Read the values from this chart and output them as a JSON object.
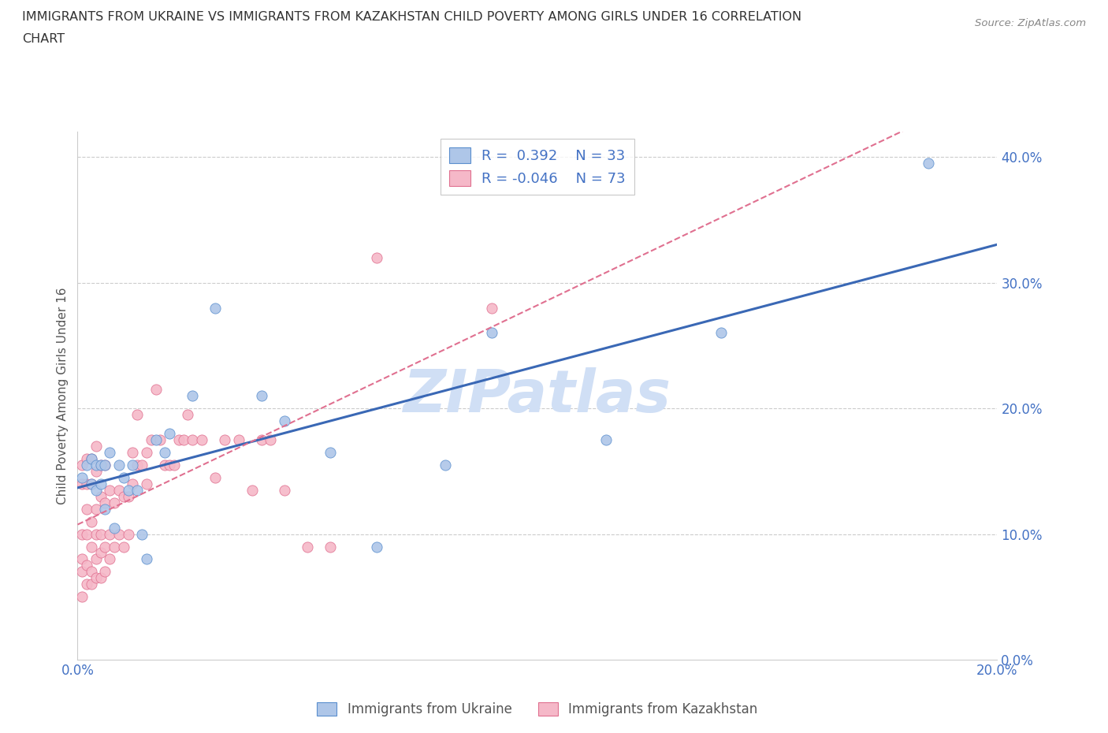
{
  "title_line1": "IMMIGRANTS FROM UKRAINE VS IMMIGRANTS FROM KAZAKHSTAN CHILD POVERTY AMONG GIRLS UNDER 16 CORRELATION",
  "title_line2": "CHART",
  "source": "Source: ZipAtlas.com",
  "ylabel": "Child Poverty Among Girls Under 16",
  "xlim": [
    0.0,
    0.2
  ],
  "ylim": [
    0.0,
    0.42
  ],
  "ukraine_R": 0.392,
  "ukraine_N": 33,
  "kazakhstan_R": -0.046,
  "kazakhstan_N": 73,
  "ukraine_color": "#aec6e8",
  "ukraine_edge_color": "#5b8fce",
  "ukraine_line_color": "#3a68b5",
  "kazakhstan_color": "#f5b8c8",
  "kazakhstan_edge_color": "#e07090",
  "kazakhstan_line_color": "#e07090",
  "tick_color": "#4472c4",
  "label_color": "#555555",
  "background_color": "#ffffff",
  "grid_color": "#cccccc",
  "watermark": "ZIPatlas",
  "watermark_color": "#d0dff5",
  "yticks": [
    0.0,
    0.1,
    0.2,
    0.3,
    0.4
  ],
  "ytick_labels": [
    "0.0%",
    "10.0%",
    "20.0%",
    "30.0%",
    "40.0%"
  ],
  "xticks": [
    0.0,
    0.05,
    0.1,
    0.15,
    0.2
  ],
  "xtick_labels": [
    "0.0%",
    "",
    "",
    "",
    "20.0%"
  ],
  "ukraine_x": [
    0.001,
    0.002,
    0.003,
    0.003,
    0.004,
    0.004,
    0.005,
    0.005,
    0.006,
    0.006,
    0.007,
    0.008,
    0.009,
    0.01,
    0.011,
    0.012,
    0.013,
    0.014,
    0.015,
    0.017,
    0.019,
    0.02,
    0.025,
    0.03,
    0.04,
    0.045,
    0.055,
    0.065,
    0.08,
    0.09,
    0.115,
    0.14,
    0.185
  ],
  "ukraine_y": [
    0.145,
    0.155,
    0.14,
    0.16,
    0.135,
    0.155,
    0.14,
    0.155,
    0.12,
    0.155,
    0.165,
    0.105,
    0.155,
    0.145,
    0.135,
    0.155,
    0.135,
    0.1,
    0.08,
    0.175,
    0.165,
    0.18,
    0.21,
    0.28,
    0.21,
    0.19,
    0.165,
    0.09,
    0.155,
    0.26,
    0.175,
    0.26,
    0.395
  ],
  "kazakhstan_x": [
    0.001,
    0.001,
    0.001,
    0.001,
    0.001,
    0.001,
    0.002,
    0.002,
    0.002,
    0.002,
    0.002,
    0.002,
    0.003,
    0.003,
    0.003,
    0.003,
    0.003,
    0.003,
    0.004,
    0.004,
    0.004,
    0.004,
    0.004,
    0.004,
    0.005,
    0.005,
    0.005,
    0.005,
    0.005,
    0.006,
    0.006,
    0.006,
    0.006,
    0.007,
    0.007,
    0.007,
    0.008,
    0.008,
    0.009,
    0.009,
    0.01,
    0.01,
    0.011,
    0.011,
    0.012,
    0.012,
    0.013,
    0.013,
    0.014,
    0.015,
    0.015,
    0.016,
    0.017,
    0.018,
    0.019,
    0.02,
    0.021,
    0.022,
    0.023,
    0.024,
    0.025,
    0.027,
    0.03,
    0.032,
    0.035,
    0.038,
    0.04,
    0.042,
    0.045,
    0.05,
    0.055,
    0.065,
    0.09
  ],
  "kazakhstan_y": [
    0.05,
    0.07,
    0.08,
    0.1,
    0.14,
    0.155,
    0.06,
    0.075,
    0.1,
    0.12,
    0.14,
    0.16,
    0.06,
    0.07,
    0.09,
    0.11,
    0.14,
    0.16,
    0.065,
    0.08,
    0.1,
    0.12,
    0.15,
    0.17,
    0.065,
    0.085,
    0.1,
    0.13,
    0.155,
    0.07,
    0.09,
    0.125,
    0.155,
    0.08,
    0.1,
    0.135,
    0.09,
    0.125,
    0.1,
    0.135,
    0.09,
    0.13,
    0.1,
    0.13,
    0.14,
    0.165,
    0.155,
    0.195,
    0.155,
    0.14,
    0.165,
    0.175,
    0.215,
    0.175,
    0.155,
    0.155,
    0.155,
    0.175,
    0.175,
    0.195,
    0.175,
    0.175,
    0.145,
    0.175,
    0.175,
    0.135,
    0.175,
    0.175,
    0.135,
    0.09,
    0.09,
    0.32,
    0.28
  ]
}
